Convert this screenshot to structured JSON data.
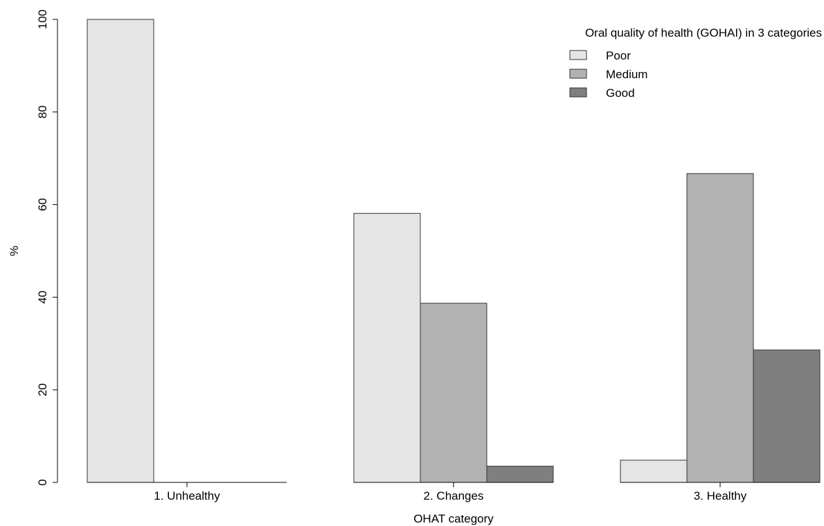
{
  "chart_data": {
    "type": "bar",
    "xlabel": "OHAT category",
    "ylabel": "%",
    "ylim": [
      0,
      100
    ],
    "yticks": [
      0,
      20,
      40,
      60,
      80,
      100
    ],
    "grid": false,
    "legend_position": "top-right",
    "legend_title": "Oral quality of health (GOHAI) in 3 categories",
    "categories": [
      "1. Unhealthy",
      "2. Changes",
      "3. Healthy"
    ],
    "series": [
      {
        "name": "Poor",
        "color": "#e5e5e5",
        "values": [
          100,
          58.1,
          4.8
        ]
      },
      {
        "name": "Medium",
        "color": "#b2b2b2",
        "values": [
          0,
          38.7,
          66.7
        ]
      },
      {
        "name": "Good",
        "color": "#7f7f7f",
        "values": [
          0,
          3.5,
          28.6
        ]
      }
    ]
  }
}
